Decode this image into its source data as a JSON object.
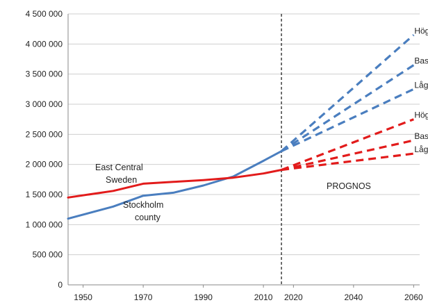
{
  "chart_data": {
    "type": "line",
    "title": "",
    "xlabel": "",
    "ylabel": "",
    "xlim": [
      1945,
      2062
    ],
    "ylim": [
      0,
      4500000
    ],
    "x_ticks": [
      "1950",
      "1970",
      "1990",
      "2010",
      "2020",
      "2040",
      "2060"
    ],
    "y_ticks": [
      "0",
      "500 000",
      "1 000 000",
      "1 500 000",
      "2 000 000",
      "2 500 000",
      "3 000 000",
      "3 500 000",
      "4 000 000",
      "4 500 000"
    ],
    "grid": "horizontal",
    "forecast_start_year": 2016,
    "annotations": {
      "east_central_line1": "East Central",
      "east_central_line2": "Sweden",
      "stockholm_line1": "Stockholm",
      "stockholm_line2": "county",
      "prognos": "PROGNOS"
    },
    "colors": {
      "stockholm": "#4a7ebf",
      "east_central": "#e21b1b",
      "grid": "#cfcfcf"
    },
    "series": [
      {
        "key": "stockholm",
        "color": "#4a7ebf",
        "x": [
          1945,
          1960,
          1970,
          1980,
          1990,
          2000,
          2010,
          2016
        ],
        "y": [
          1100000,
          1300000,
          1480000,
          1530000,
          1650000,
          1800000,
          2060000,
          2220000
        ]
      },
      {
        "key": "east_central",
        "color": "#e21b1b",
        "x": [
          1945,
          1960,
          1970,
          1980,
          1990,
          2000,
          2010,
          2016
        ],
        "y": [
          1450000,
          1560000,
          1680000,
          1710000,
          1740000,
          1780000,
          1850000,
          1910000
        ]
      }
    ],
    "forecast_series": [
      {
        "key": "stockholm-hog",
        "label": "Hög",
        "color": "#4a7ebf",
        "x": [
          2016,
          2060
        ],
        "y": [
          2220000,
          4150000
        ]
      },
      {
        "key": "stockholm-bas",
        "label": "Bas",
        "color": "#4a7ebf",
        "x": [
          2016,
          2060
        ],
        "y": [
          2220000,
          3650000
        ]
      },
      {
        "key": "stockholm-lag",
        "label": "Låg",
        "color": "#4a7ebf",
        "x": [
          2016,
          2060
        ],
        "y": [
          2220000,
          3250000
        ]
      },
      {
        "key": "east-central-hog",
        "label": "Hög",
        "color": "#e21b1b",
        "x": [
          2016,
          2060
        ],
        "y": [
          1910000,
          2750000
        ]
      },
      {
        "key": "east-central-bas",
        "label": "Bas",
        "color": "#e21b1b",
        "x": [
          2016,
          2060
        ],
        "y": [
          1910000,
          2400000
        ]
      },
      {
        "key": "east-central-lag",
        "label": "Låg",
        "color": "#e21b1b",
        "x": [
          2016,
          2060
        ],
        "y": [
          1910000,
          2180000
        ]
      }
    ]
  }
}
